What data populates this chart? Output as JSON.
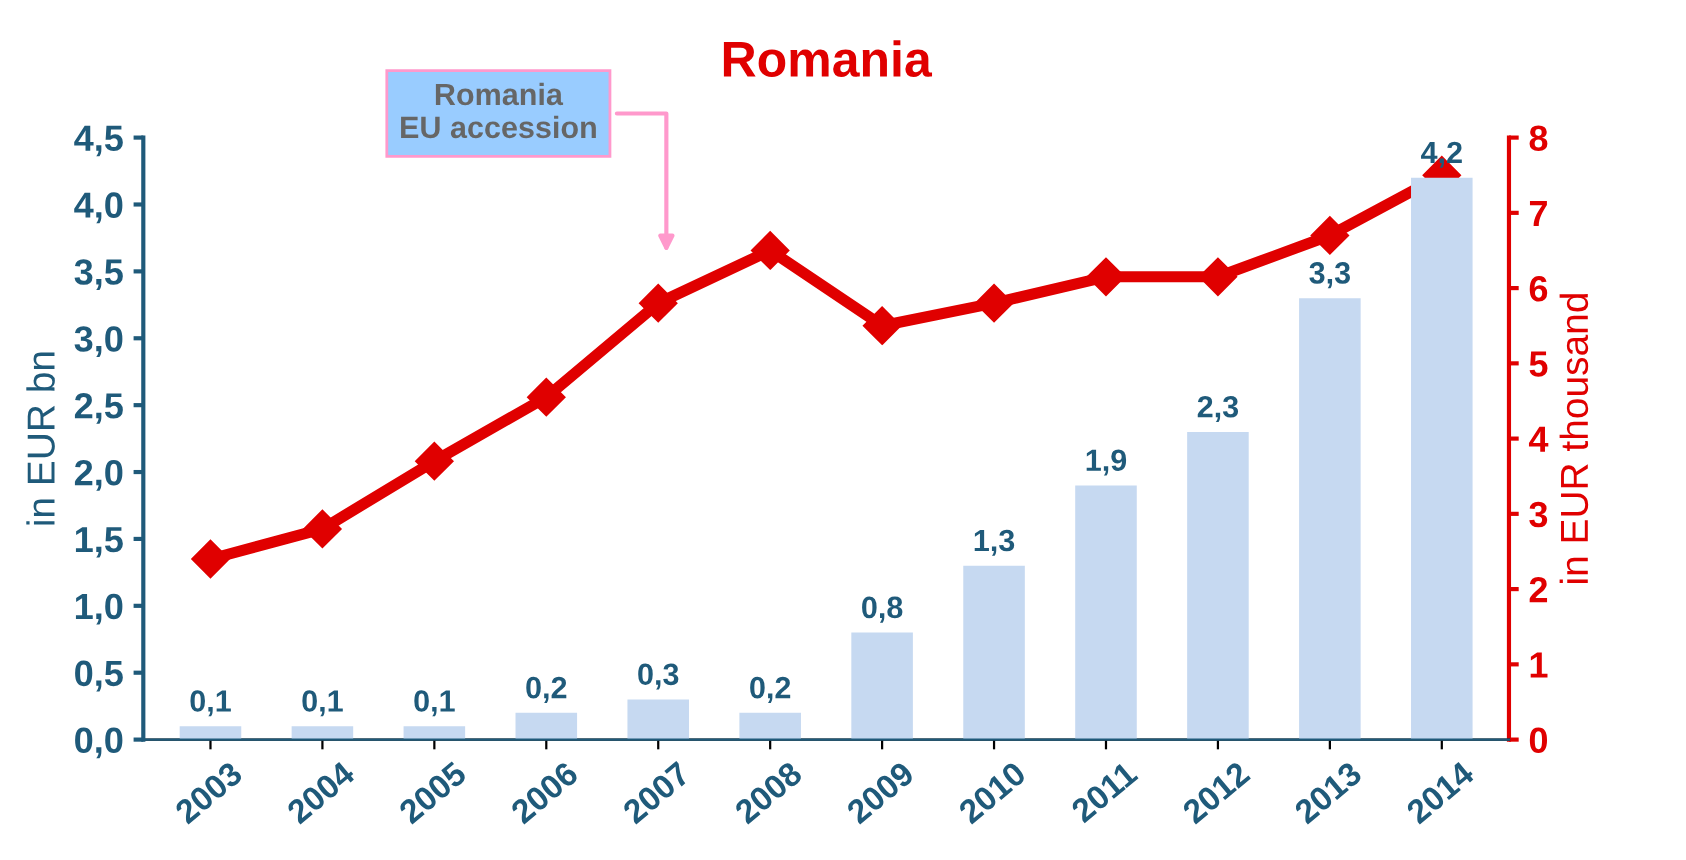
{
  "chart_data": {
    "type": "bar",
    "title": "Romania",
    "ylabel": "in EUR bn",
    "y2label": "in EUR thousand",
    "categories": [
      "2003",
      "2004",
      "2005",
      "2006",
      "2007",
      "2008",
      "2009",
      "2010",
      "2011",
      "2012",
      "2013",
      "2014"
    ],
    "series": [
      {
        "color": "#c6d9f1",
        "values": [
          0.1,
          0.1,
          0.1,
          0.2,
          0.3,
          0.2,
          0.8,
          1.3,
          1.9,
          2.3,
          3.3,
          4.2
        ],
        "value_labels": [
          "0,1",
          "0,1",
          "0,1",
          "0,2",
          "0,3",
          "0,2",
          "0,8",
          "1,3",
          "1,9",
          "2,3",
          "3,3",
          "4,2"
        ]
      },
      {
        "type": "line",
        "axis": "y2",
        "color": "#e00000",
        "marker": "diamond",
        "values": [
          2.4,
          2.8,
          3.7,
          4.55,
          5.8,
          6.5,
          5.5,
          5.8,
          6.15,
          6.15,
          6.7,
          7.5
        ]
      }
    ],
    "ylim": [
      0,
      4.5
    ],
    "yticks": [
      {
        "value": 0,
        "label": "0,0"
      },
      {
        "value": 0.5,
        "label": "0,5"
      },
      {
        "value": 1,
        "label": "1,0"
      },
      {
        "value": 1.5,
        "label": "1,5"
      },
      {
        "value": 2,
        "label": "2,0"
      },
      {
        "value": 2.5,
        "label": "2,5"
      },
      {
        "value": 3,
        "label": "3,0"
      },
      {
        "value": 3.5,
        "label": "3,5"
      },
      {
        "value": 4,
        "label": "4,0"
      },
      {
        "value": 4.5,
        "label": "4,5"
      }
    ],
    "y2lim": [
      0,
      8
    ],
    "y2ticks": [
      0,
      1,
      2,
      3,
      4,
      5,
      6,
      7,
      8
    ],
    "annotations": [
      "Romania\nEU accession"
    ],
    "grid": false,
    "legend": false
  }
}
